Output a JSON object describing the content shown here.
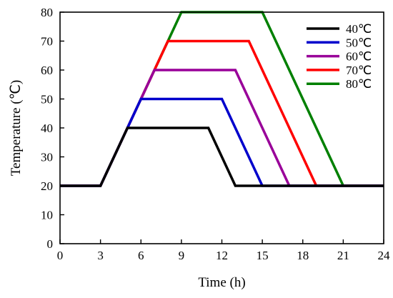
{
  "chart_data": {
    "type": "line",
    "title": "",
    "xlabel": "Time (h)",
    "ylabel": "Temperature (℃)",
    "xlim": [
      0,
      24
    ],
    "ylim": [
      0,
      80
    ],
    "xticks": [
      0,
      3,
      6,
      9,
      12,
      15,
      18,
      21,
      24
    ],
    "yticks": [
      0,
      10,
      20,
      30,
      40,
      50,
      60,
      70,
      80
    ],
    "grid": false,
    "legend_position": "top-right",
    "series": [
      {
        "name": "40℃",
        "color": "#000000",
        "x": [
          0,
          3,
          5,
          11,
          13,
          24
        ],
        "y": [
          20,
          20,
          40,
          40,
          20,
          20
        ]
      },
      {
        "name": "50℃",
        "color": "#0000cc",
        "x": [
          0,
          3,
          6,
          12,
          15,
          24
        ],
        "y": [
          20,
          20,
          50,
          50,
          20,
          20
        ]
      },
      {
        "name": "60℃",
        "color": "#990099",
        "x": [
          0,
          3,
          7,
          13,
          17,
          24
        ],
        "y": [
          20,
          20,
          60,
          60,
          20,
          20
        ]
      },
      {
        "name": "70℃",
        "color": "#ff0000",
        "x": [
          0,
          3,
          8,
          14,
          19,
          24
        ],
        "y": [
          20,
          20,
          70,
          70,
          20,
          20
        ]
      },
      {
        "name": "80℃",
        "color": "#008000",
        "x": [
          0,
          3,
          9,
          15,
          21,
          24
        ],
        "y": [
          20,
          20,
          80,
          80,
          20,
          20
        ]
      }
    ]
  }
}
